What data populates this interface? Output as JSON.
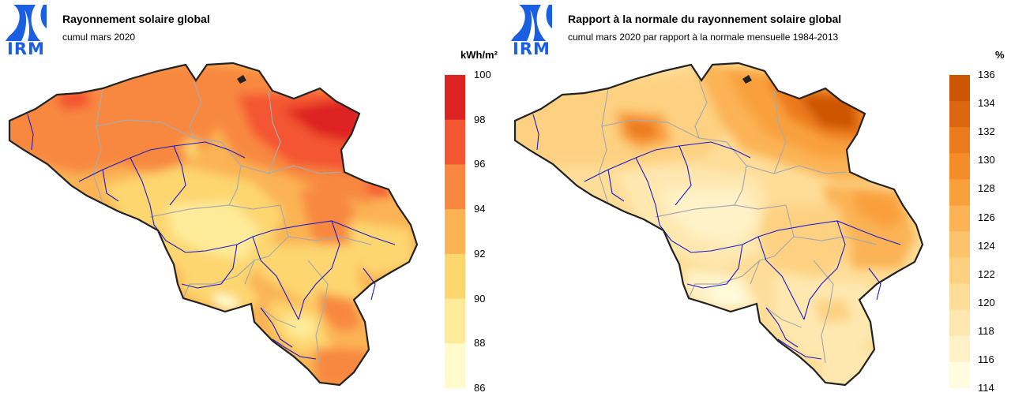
{
  "left": {
    "logo_text": "IRM",
    "title": "Rayonnement solaire global",
    "subtitle": "cumul mars 2020",
    "unit": "kWh/m²",
    "legend": {
      "labels": [
        "100",
        "98",
        "96",
        "94",
        "92",
        "90",
        "88",
        "86"
      ],
      "colors": [
        "#dd2222",
        "#f45533",
        "#f8883f",
        "#fbb354",
        "#fdd66f",
        "#feeb9a",
        "#fffbcd"
      ]
    }
  },
  "right": {
    "logo_text": "IRM",
    "title": "Rapport à la normale du rayonnement solaire global",
    "subtitle": "cumul mars 2020 par rapport à la normale mensuelle 1984-2013",
    "unit": "%",
    "legend": {
      "labels": [
        "136",
        "134",
        "132",
        "130",
        "128",
        "126",
        "124",
        "122",
        "120",
        "118",
        "116",
        "114"
      ],
      "colors": [
        "#cc5500",
        "#dd6611",
        "#ec7a1e",
        "#f58c2a",
        "#f9a03d",
        "#fbb354",
        "#fcc46a",
        "#fdd181",
        "#fedd98",
        "#fee8b0",
        "#fff2c8",
        "#fffbdf"
      ]
    }
  }
}
